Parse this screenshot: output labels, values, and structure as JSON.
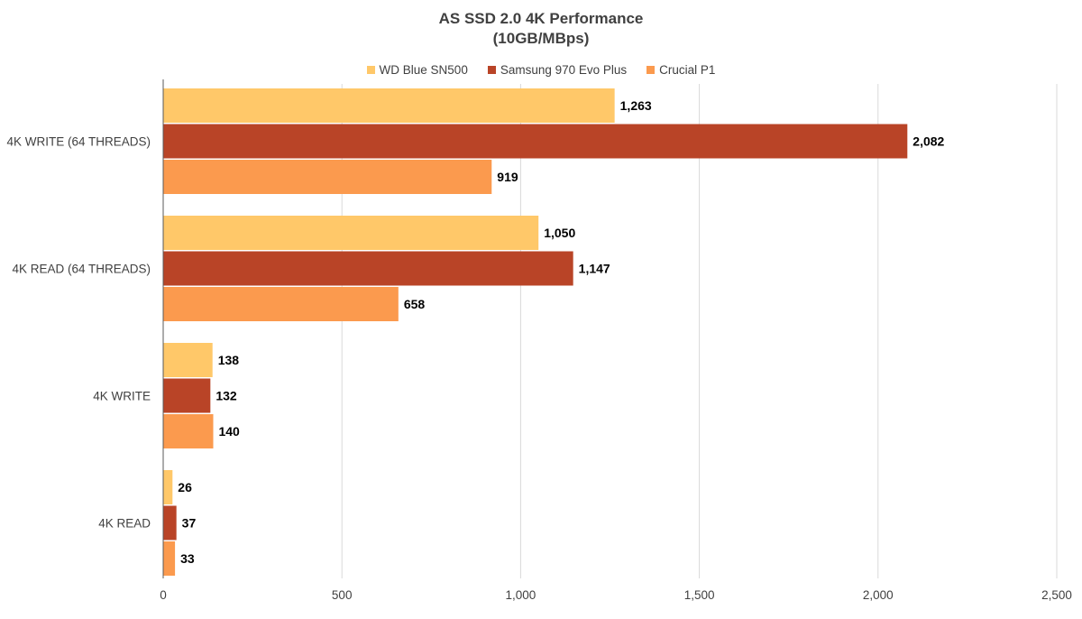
{
  "chart_data": {
    "type": "bar",
    "orientation": "horizontal",
    "title": "AS SSD 2.0 4K Performance",
    "subtitle": "(10GB/MBps)",
    "categories": [
      "4K WRITE (64 THREADS)",
      "4K READ (64 THREADS)",
      "4K WRITE",
      "4K READ"
    ],
    "series": [
      {
        "name": "WD Blue SN500",
        "color": "#ffc869",
        "values": [
          1263,
          1050,
          138,
          26
        ],
        "labels": [
          "1,263",
          "1,050",
          "138",
          "26"
        ]
      },
      {
        "name": "Samsung 970 Evo Plus",
        "color": "#b94427",
        "values": [
          2082,
          1147,
          132,
          37
        ],
        "labels": [
          "2,082",
          "1,147",
          "132",
          "37"
        ]
      },
      {
        "name": "Crucial P1",
        "color": "#fb9a4e",
        "values": [
          919,
          658,
          140,
          33
        ],
        "labels": [
          "919",
          "658",
          "140",
          "33"
        ]
      }
    ],
    "xlim": [
      0,
      2500
    ],
    "ticks": [
      0,
      500,
      1000,
      1500,
      2000,
      2500
    ],
    "tick_labels": [
      "0",
      "500",
      "1,000",
      "1,500",
      "2,000",
      "2,500"
    ],
    "grid": "vertical",
    "legend_position": "top"
  }
}
